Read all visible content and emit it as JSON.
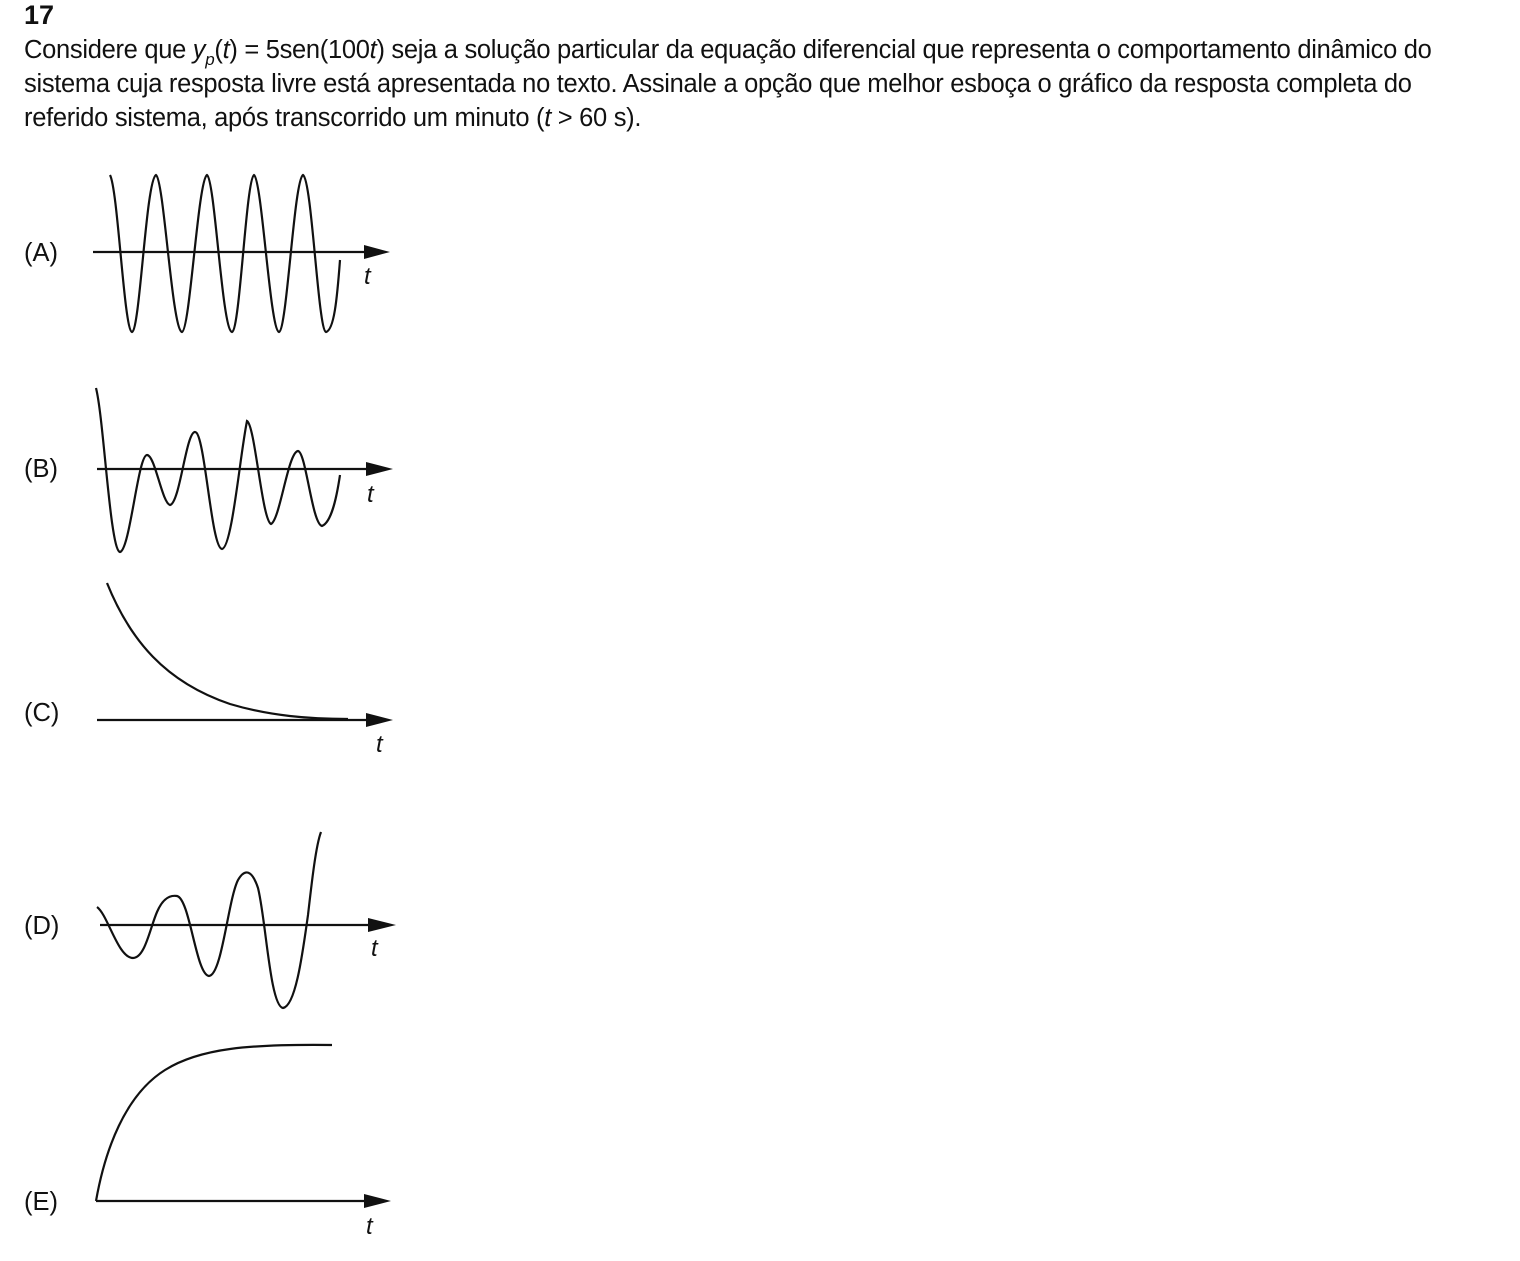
{
  "question": {
    "number": "17",
    "line1_a": "Considere que ",
    "line1_y": "y",
    "line1_p": "p",
    "line1_b": "(",
    "line1_t1": "t",
    "line1_c": ") = 5sen(100",
    "line1_t2": "t",
    "line1_d": ") seja a solução particular da equação diferencial que representa o comportamento dinâmico do",
    "line2": "sistema cuja resposta livre está apresentada no texto. Assinale a opção que melhor esboça o gráfico da resposta completa do",
    "line3_a": "referido sistema, após transcorrido um minuto (",
    "line3_t": "t",
    "line3_b": " > 60 s)."
  },
  "options": [
    {
      "label": "(A)",
      "axis_label": "t",
      "curve": "constant-amplitude oscillation"
    },
    {
      "label": "(B)",
      "axis_label": "t",
      "curve": "oscillation with alternating amplitude"
    },
    {
      "label": "(C)",
      "axis_label": "t",
      "curve": "exponential decay"
    },
    {
      "label": "(D)",
      "axis_label": "t",
      "curve": "growing oscillation"
    },
    {
      "label": "(E)",
      "axis_label": "t",
      "curve": "exponential rise to plateau"
    }
  ],
  "colors": {
    "ink": "#111111",
    "background": "#ffffff"
  }
}
